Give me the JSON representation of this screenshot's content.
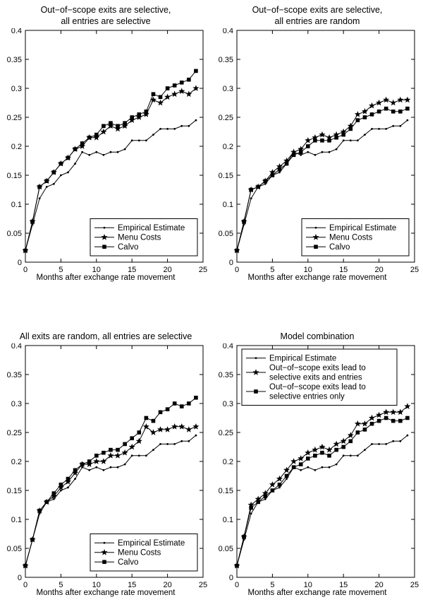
{
  "figure": {
    "background": "#ffffff",
    "axis_color": "#000000",
    "series_color": "#000000"
  },
  "chart_data": [
    {
      "type": "line",
      "title": "Out−of−scope exits are selective,\nall entries are selective",
      "xlabel": "Months after exchange rate movement",
      "ylabel": "",
      "xlim": [
        0,
        25
      ],
      "ylim": [
        0,
        0.4
      ],
      "xticks": [
        0,
        5,
        10,
        15,
        20,
        25
      ],
      "xtick_labels": [
        "0",
        "5",
        "10",
        "15",
        "20",
        "25"
      ],
      "yticks": [
        0,
        0.05,
        0.1,
        0.15,
        0.2,
        0.25,
        0.3,
        0.35,
        0.4
      ],
      "ytick_labels": [
        "0",
        "0.05",
        "0.1",
        "0.15",
        "0.2",
        "0.25",
        "0.3",
        "0.35",
        "0.4"
      ],
      "grid": false,
      "x": [
        0,
        1,
        2,
        3,
        4,
        5,
        6,
        7,
        8,
        9,
        10,
        11,
        12,
        13,
        14,
        15,
        16,
        17,
        18,
        19,
        20,
        21,
        22,
        23,
        24
      ],
      "series": [
        {
          "name": "Empirical Estimate",
          "marker": "dot",
          "values": [
            0.02,
            0.065,
            0.11,
            0.13,
            0.135,
            0.15,
            0.155,
            0.17,
            0.19,
            0.185,
            0.19,
            0.185,
            0.19,
            0.19,
            0.195,
            0.21,
            0.21,
            0.21,
            0.22,
            0.23,
            0.23,
            0.23,
            0.235,
            0.235,
            0.245
          ]
        },
        {
          "name": "Menu Costs",
          "marker": "star",
          "values": [
            0.02,
            0.07,
            0.13,
            0.14,
            0.155,
            0.17,
            0.18,
            0.195,
            0.2,
            0.215,
            0.215,
            0.225,
            0.235,
            0.23,
            0.235,
            0.245,
            0.25,
            0.255,
            0.28,
            0.275,
            0.285,
            0.29,
            0.295,
            0.29,
            0.3
          ]
        },
        {
          "name": "Calvo",
          "marker": "square",
          "values": [
            0.02,
            0.07,
            0.13,
            0.14,
            0.155,
            0.17,
            0.18,
            0.195,
            0.205,
            0.215,
            0.22,
            0.235,
            0.24,
            0.235,
            0.24,
            0.25,
            0.255,
            0.26,
            0.29,
            0.285,
            0.3,
            0.305,
            0.31,
            0.315,
            0.33
          ]
        }
      ],
      "legend": {
        "position": "bottom-right",
        "entries": [
          {
            "label": "Empirical Estimate",
            "marker": "dot"
          },
          {
            "label": "Menu Costs",
            "marker": "star"
          },
          {
            "label": "Calvo",
            "marker": "square"
          }
        ]
      }
    },
    {
      "type": "line",
      "title": "Out−of−scope exits are selective,\nall entries are random",
      "xlabel": "Months after exchange rate movement",
      "ylabel": "",
      "xlim": [
        0,
        25
      ],
      "ylim": [
        0,
        0.4
      ],
      "xticks": [
        0,
        5,
        10,
        15,
        20,
        25
      ],
      "xtick_labels": [
        "0",
        "5",
        "10",
        "15",
        "20",
        "25"
      ],
      "yticks": [
        0,
        0.05,
        0.1,
        0.15,
        0.2,
        0.25,
        0.3,
        0.35,
        0.4
      ],
      "ytick_labels": [
        "0",
        "0.05",
        "0.1",
        "0.15",
        "0.2",
        "0.25",
        "0.3",
        "0.35",
        "0.4"
      ],
      "grid": false,
      "x": [
        0,
        1,
        2,
        3,
        4,
        5,
        6,
        7,
        8,
        9,
        10,
        11,
        12,
        13,
        14,
        15,
        16,
        17,
        18,
        19,
        20,
        21,
        22,
        23,
        24
      ],
      "series": [
        {
          "name": "Empirical Estimate",
          "marker": "dot",
          "values": [
            0.02,
            0.065,
            0.11,
            0.13,
            0.135,
            0.15,
            0.155,
            0.17,
            0.19,
            0.185,
            0.19,
            0.185,
            0.19,
            0.19,
            0.195,
            0.21,
            0.21,
            0.21,
            0.22,
            0.23,
            0.23,
            0.23,
            0.235,
            0.235,
            0.245
          ]
        },
        {
          "name": "Menu Costs",
          "marker": "star",
          "values": [
            0.02,
            0.07,
            0.125,
            0.13,
            0.14,
            0.155,
            0.165,
            0.175,
            0.19,
            0.195,
            0.21,
            0.215,
            0.22,
            0.215,
            0.22,
            0.225,
            0.235,
            0.255,
            0.26,
            0.27,
            0.275,
            0.28,
            0.275,
            0.28,
            0.28
          ]
        },
        {
          "name": "Calvo",
          "marker": "square",
          "values": [
            0.02,
            0.07,
            0.125,
            0.13,
            0.14,
            0.15,
            0.16,
            0.17,
            0.185,
            0.19,
            0.2,
            0.21,
            0.21,
            0.21,
            0.215,
            0.22,
            0.23,
            0.245,
            0.25,
            0.255,
            0.26,
            0.265,
            0.26,
            0.26,
            0.265
          ]
        }
      ],
      "legend": {
        "position": "bottom-right",
        "entries": [
          {
            "label": "Empirical Estimate",
            "marker": "dot"
          },
          {
            "label": "Menu Costs",
            "marker": "star"
          },
          {
            "label": "Calvo",
            "marker": "square"
          }
        ]
      }
    },
    {
      "type": "line",
      "title": "All exits are random, all entries are selective",
      "xlabel": "Months after exchange rate movement",
      "ylabel": "",
      "xlim": [
        0,
        25
      ],
      "ylim": [
        0,
        0.4
      ],
      "xticks": [
        0,
        5,
        10,
        15,
        20,
        25
      ],
      "xtick_labels": [
        "0",
        "5",
        "10",
        "15",
        "20",
        "25"
      ],
      "yticks": [
        0,
        0.05,
        0.1,
        0.15,
        0.2,
        0.25,
        0.3,
        0.35,
        0.4
      ],
      "ytick_labels": [
        "0",
        "0.05",
        "0.1",
        "0.15",
        "0.2",
        "0.25",
        "0.3",
        "0.35",
        "0.4"
      ],
      "grid": false,
      "x": [
        0,
        1,
        2,
        3,
        4,
        5,
        6,
        7,
        8,
        9,
        10,
        11,
        12,
        13,
        14,
        15,
        16,
        17,
        18,
        19,
        20,
        21,
        22,
        23,
        24
      ],
      "series": [
        {
          "name": "Empirical Estimate",
          "marker": "dot",
          "values": [
            0.02,
            0.065,
            0.11,
            0.13,
            0.135,
            0.15,
            0.155,
            0.17,
            0.19,
            0.185,
            0.19,
            0.185,
            0.19,
            0.19,
            0.195,
            0.21,
            0.21,
            0.21,
            0.22,
            0.23,
            0.23,
            0.23,
            0.235,
            0.235,
            0.245
          ]
        },
        {
          "name": "Menu Costs",
          "marker": "star",
          "values": [
            0.02,
            0.065,
            0.115,
            0.13,
            0.14,
            0.155,
            0.165,
            0.18,
            0.195,
            0.195,
            0.2,
            0.2,
            0.21,
            0.21,
            0.215,
            0.225,
            0.235,
            0.26,
            0.25,
            0.255,
            0.255,
            0.26,
            0.26,
            0.255,
            0.26
          ]
        },
        {
          "name": "Calvo",
          "marker": "square",
          "values": [
            0.02,
            0.065,
            0.115,
            0.13,
            0.145,
            0.16,
            0.17,
            0.185,
            0.195,
            0.2,
            0.21,
            0.215,
            0.22,
            0.22,
            0.23,
            0.24,
            0.25,
            0.275,
            0.27,
            0.285,
            0.29,
            0.3,
            0.295,
            0.3,
            0.31
          ]
        }
      ],
      "legend": {
        "position": "bottom-right",
        "entries": [
          {
            "label": "Empirical Estimate",
            "marker": "dot"
          },
          {
            "label": "Menu Costs",
            "marker": "star"
          },
          {
            "label": "Calvo",
            "marker": "square"
          }
        ]
      }
    },
    {
      "type": "line",
      "title": "Model combination",
      "xlabel": "Months after exchange rate movement",
      "ylabel": "",
      "xlim": [
        0,
        25
      ],
      "ylim": [
        0,
        0.4
      ],
      "xticks": [
        0,
        5,
        10,
        15,
        20,
        25
      ],
      "xtick_labels": [
        "0",
        "5",
        "10",
        "15",
        "20",
        "25"
      ],
      "yticks": [
        0,
        0.05,
        0.1,
        0.15,
        0.2,
        0.25,
        0.3,
        0.35,
        0.4
      ],
      "ytick_labels": [
        "0",
        "0.05",
        "0.1",
        "0.15",
        "0.2",
        "0.25",
        "0.3",
        "0.35",
        "0.4"
      ],
      "grid": false,
      "x": [
        0,
        1,
        2,
        3,
        4,
        5,
        6,
        7,
        8,
        9,
        10,
        11,
        12,
        13,
        14,
        15,
        16,
        17,
        18,
        19,
        20,
        21,
        22,
        23,
        24
      ],
      "series": [
        {
          "name": "Empirical Estimate",
          "marker": "dot",
          "values": [
            0.02,
            0.065,
            0.11,
            0.13,
            0.135,
            0.15,
            0.155,
            0.17,
            0.19,
            0.185,
            0.19,
            0.185,
            0.19,
            0.19,
            0.195,
            0.21,
            0.21,
            0.21,
            0.22,
            0.23,
            0.23,
            0.23,
            0.235,
            0.235,
            0.245
          ]
        },
        {
          "name": "Out−of−scope exits lead to selective exits and entries",
          "marker": "star",
          "values": [
            0.02,
            0.07,
            0.125,
            0.135,
            0.145,
            0.16,
            0.17,
            0.185,
            0.2,
            0.205,
            0.215,
            0.22,
            0.225,
            0.22,
            0.23,
            0.235,
            0.245,
            0.265,
            0.265,
            0.275,
            0.28,
            0.285,
            0.285,
            0.285,
            0.295
          ]
        },
        {
          "name": "Out−of−scope exits lead to selective entries only",
          "marker": "square",
          "values": [
            0.02,
            0.07,
            0.12,
            0.13,
            0.14,
            0.15,
            0.16,
            0.175,
            0.19,
            0.195,
            0.205,
            0.21,
            0.215,
            0.21,
            0.22,
            0.225,
            0.235,
            0.25,
            0.255,
            0.265,
            0.27,
            0.275,
            0.27,
            0.27,
            0.275
          ]
        }
      ],
      "legend": {
        "position": "top-left",
        "entries": [
          {
            "label": "Empirical Estimate",
            "marker": "dot"
          },
          {
            "label": "Out−of−scope exits lead to\nselective exits and entries",
            "marker": "star"
          },
          {
            "label": "Out−of−scope exits lead to\nselective entries only",
            "marker": "square"
          }
        ]
      }
    }
  ]
}
